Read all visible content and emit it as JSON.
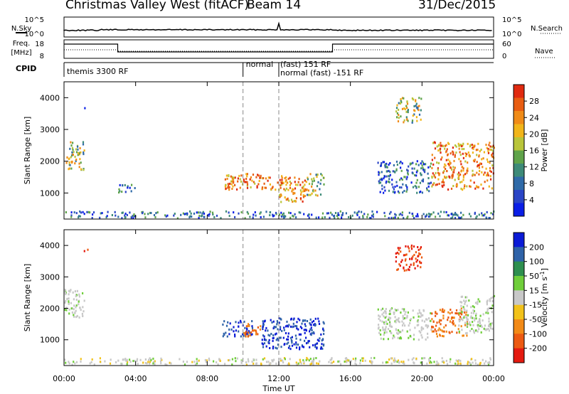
{
  "header": {
    "station": "Christmas Valley West (fitACF)",
    "beam": "Beam 14",
    "date": "31/Dec/2015"
  },
  "summary_panels": {
    "nsky_label": "N.Sky",
    "nsky_ticks": [
      "10^5",
      "10^0"
    ],
    "nsearch_label": "N.Search",
    "nsearch_ticks": [
      "10^5",
      "10^0"
    ],
    "freq_label_line1": "Freq.",
    "freq_label_line2": "[MHz]",
    "freq_ticks": [
      "18",
      "8"
    ],
    "nave_label": "Nave",
    "nave_ticks": [
      "60",
      "0"
    ],
    "cpid_label": "CPID",
    "cpid_segments": [
      {
        "text": "themis 3300 RF"
      },
      {
        "text": "normal"
      },
      {
        "text": "(fast) 151 RF"
      },
      {
        "text": "normal (fast) -151 RF"
      }
    ]
  },
  "chart_data": [
    {
      "type": "heatmap",
      "name": "power",
      "ylabel": "Slant Range [km]",
      "xlabel": "Time UT",
      "x_ticks": [
        "00:00",
        "04:00",
        "08:00",
        "12:00",
        "16:00",
        "20:00",
        "00:00"
      ],
      "xlim_hours": [
        0,
        24
      ],
      "y_ticks": [
        1000,
        2000,
        3000,
        4000
      ],
      "ylim": [
        180,
        4500
      ],
      "colorbar": {
        "label": "Power [dB]",
        "ticks": [
          4,
          8,
          12,
          16,
          20,
          24,
          28
        ],
        "range": [
          0,
          32
        ],
        "colors": [
          "#0a1ee6",
          "#2a45c6",
          "#2f6aa8",
          "#3d8a78",
          "#5fa34a",
          "#b9c53a",
          "#f1b51a",
          "#f08b18",
          "#e85d12",
          "#e02a10"
        ]
      },
      "vertical_markers_hours": [
        10,
        12
      ],
      "features": [
        {
          "t_start": 0.0,
          "t_end": 24.0,
          "range_min": 200,
          "range_max": 420,
          "level": "weak"
        },
        {
          "t_start": 0.0,
          "t_end": 1.1,
          "range_min": 1700,
          "range_max": 2600,
          "level": "moderate"
        },
        {
          "t_start": 1.1,
          "t_end": 1.3,
          "range_min": 3600,
          "range_max": 3900,
          "level": "weak"
        },
        {
          "t_start": 3.0,
          "t_end": 4.0,
          "range_min": 1000,
          "range_max": 1300,
          "level": "weak"
        },
        {
          "t_start": 8.8,
          "t_end": 12.5,
          "range_min": 1100,
          "range_max": 1600,
          "level": "strong"
        },
        {
          "t_start": 12.0,
          "t_end": 13.5,
          "range_min": 700,
          "range_max": 1500,
          "level": "strong"
        },
        {
          "t_start": 13.5,
          "t_end": 14.5,
          "range_min": 900,
          "range_max": 1600,
          "level": "moderate"
        },
        {
          "t_start": 17.5,
          "t_end": 20.5,
          "range_min": 1000,
          "range_max": 2000,
          "level": "weak"
        },
        {
          "t_start": 18.5,
          "t_end": 20.0,
          "range_min": 3200,
          "range_max": 4000,
          "level": "moderate"
        },
        {
          "t_start": 20.5,
          "t_end": 24.0,
          "range_min": 1100,
          "range_max": 2600,
          "level": "strong"
        }
      ]
    },
    {
      "type": "heatmap",
      "name": "velocity",
      "ylabel": "Slant Range [km]",
      "xlabel": "Time UT",
      "x_ticks": [
        "00:00",
        "04:00",
        "08:00",
        "12:00",
        "16:00",
        "20:00",
        "00:00"
      ],
      "xlim_hours": [
        0,
        24
      ],
      "y_ticks": [
        1000,
        2000,
        3000,
        4000
      ],
      "ylim": [
        180,
        4500
      ],
      "colorbar": {
        "label": "Velocity [m s^-1]",
        "ticks": [
          200,
          100,
          50,
          15,
          -15,
          -50,
          -100,
          -200
        ],
        "range": [
          -250,
          250
        ],
        "colors": [
          "#0b1bd6",
          "#2f63a8",
          "#2e8f4f",
          "#6fce3a",
          "#c8c8c8",
          "#f2c21a",
          "#f28a17",
          "#ec5a12",
          "#e41a10"
        ]
      },
      "vertical_markers_hours": [
        10,
        12
      ],
      "features": [
        {
          "t_start": 0.0,
          "t_end": 24.0,
          "range_min": 200,
          "range_max": 420,
          "velocity": "near-zero / slightly negative"
        },
        {
          "t_start": 0.0,
          "t_end": 1.1,
          "range_min": 1700,
          "range_max": 2600,
          "velocity": "near-zero"
        },
        {
          "t_start": 1.1,
          "t_end": 1.3,
          "range_min": 3600,
          "range_max": 3900,
          "velocity": "-200"
        },
        {
          "t_start": 8.8,
          "t_end": 10.5,
          "range_min": 1100,
          "range_max": 1600,
          "velocity": "positive ~150"
        },
        {
          "t_start": 10.0,
          "t_end": 11.0,
          "range_min": 1100,
          "range_max": 1500,
          "velocity": "-150"
        },
        {
          "t_start": 11.0,
          "t_end": 14.5,
          "range_min": 700,
          "range_max": 1700,
          "velocity": "positive ~200"
        },
        {
          "t_start": 17.5,
          "t_end": 20.5,
          "range_min": 1000,
          "range_max": 2000,
          "velocity": "near-zero"
        },
        {
          "t_start": 18.5,
          "t_end": 20.0,
          "range_min": 3200,
          "range_max": 4000,
          "velocity": "-200"
        },
        {
          "t_start": 20.5,
          "t_end": 22.5,
          "range_min": 1100,
          "range_max": 2000,
          "velocity": "-150"
        },
        {
          "t_start": 22.0,
          "t_end": 24.0,
          "range_min": 1200,
          "range_max": 2400,
          "velocity": "near-zero"
        }
      ]
    }
  ]
}
